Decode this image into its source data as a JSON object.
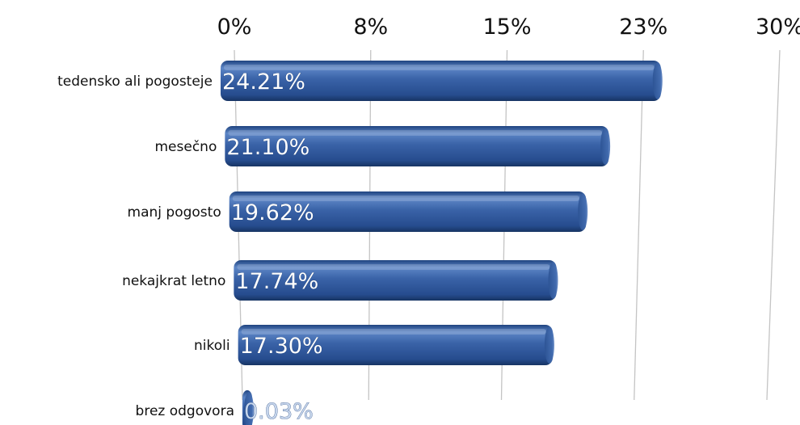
{
  "chart_data": {
    "type": "bar",
    "orientation": "horizontal",
    "x_ticks": [
      "0%",
      "8%",
      "15%",
      "23%",
      "30%"
    ],
    "xlim": [
      0,
      30
    ],
    "grid": true,
    "categories": [
      "tedensko ali pogosteje",
      "mesečno",
      "manj pogosto",
      "nekajkrat letno",
      "nikoli",
      "brez odgovora"
    ],
    "values": [
      24.21,
      21.1,
      19.62,
      17.74,
      17.3,
      0.03
    ],
    "value_labels": [
      "24.21%",
      "21.10%",
      "19.62%",
      "17.74%",
      "17.30%",
      "0.03%"
    ]
  },
  "colors": {
    "bar": "#3a63a8",
    "bar_light": "#6f95d0",
    "bar_dark": "#1d3f7c",
    "grid": "#c4c4c4"
  }
}
